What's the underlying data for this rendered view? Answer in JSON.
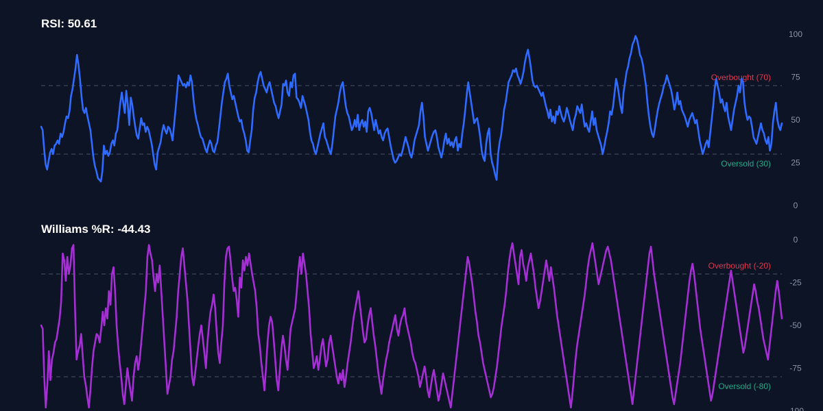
{
  "colors": {
    "background": "#0c1426",
    "rsi_line": "#2f6bff",
    "williams_line": "#a52fd4",
    "overbought": "#e0374f",
    "oversold": "#1faa8a",
    "guide": "#4a5468",
    "tick": "#8b93a7"
  },
  "chart_data": [
    {
      "type": "line",
      "title": "RSI: 50.61",
      "ylim": [
        0,
        100
      ],
      "yticks": [
        "100",
        "75",
        "50",
        "25",
        "0"
      ],
      "ytick_values": [
        100,
        75,
        50,
        25,
        0
      ],
      "grid": false,
      "levels": [
        {
          "value": 70,
          "label": "Overbought (70)",
          "kind": "overbought"
        },
        {
          "value": 30,
          "label": "Oversold (30)",
          "kind": "oversold"
        }
      ],
      "series": [
        {
          "values": [
            46,
            44,
            33,
            24,
            21,
            26,
            31,
            33,
            30,
            35,
            36,
            38,
            36,
            42,
            40,
            43,
            48,
            52,
            51,
            55,
            64,
            68,
            74,
            80,
            88,
            82,
            74,
            64,
            56,
            54,
            57,
            52,
            48,
            44,
            36,
            28,
            23,
            20,
            16,
            15,
            14,
            20,
            35,
            30,
            32,
            29,
            31,
            36,
            38,
            35,
            42,
            44,
            52,
            60,
            66,
            60,
            54,
            67,
            59,
            47,
            63,
            59,
            52,
            46,
            41,
            39,
            45,
            51,
            47,
            48,
            43,
            46,
            44,
            40,
            36,
            30,
            24,
            21,
            31,
            34,
            37,
            43,
            47,
            44,
            42,
            46,
            45,
            42,
            38,
            47,
            56,
            66,
            76,
            74,
            72,
            70,
            71,
            69,
            72,
            70,
            76,
            72,
            62,
            55,
            50,
            47,
            43,
            40,
            39,
            36,
            33,
            31,
            35,
            38,
            36,
            32,
            31,
            35,
            37,
            44,
            52,
            60,
            66,
            72,
            74,
            77,
            70,
            66,
            62,
            64,
            60,
            56,
            52,
            49,
            50,
            45,
            42,
            38,
            32,
            31,
            38,
            44,
            56,
            63,
            66,
            72,
            76,
            78,
            74,
            70,
            68,
            66,
            70,
            72,
            68,
            64,
            60,
            58,
            54,
            51,
            55,
            59,
            71,
            70,
            73,
            66,
            64,
            72,
            69,
            76,
            77,
            63,
            62,
            60,
            57,
            64,
            61,
            58,
            54,
            50,
            43,
            38,
            36,
            32,
            30,
            34,
            38,
            42,
            45,
            48,
            40,
            38,
            35,
            32,
            30,
            36,
            44,
            52,
            56,
            60,
            66,
            70,
            72,
            65,
            58,
            54,
            52,
            48,
            44,
            46,
            50,
            46,
            53,
            44,
            48,
            50,
            46,
            49,
            43,
            55,
            57,
            54,
            49,
            44,
            50,
            46,
            42,
            44,
            40,
            38,
            42,
            44,
            45,
            40,
            35,
            31,
            27,
            25,
            26,
            28,
            30,
            29,
            32,
            36,
            40,
            37,
            34,
            30,
            28,
            32,
            38,
            41,
            44,
            47,
            55,
            60,
            52,
            40,
            36,
            32,
            35,
            38,
            41,
            43,
            44,
            40,
            34,
            31,
            28,
            32,
            38,
            42,
            36,
            39,
            35,
            37,
            34,
            38,
            40,
            32,
            36,
            34,
            42,
            48,
            56,
            65,
            72,
            66,
            60,
            54,
            48,
            50,
            51,
            46,
            40,
            32,
            28,
            26,
            36,
            42,
            45,
            30,
            25,
            22,
            18,
            15,
            30,
            37,
            41,
            48,
            56,
            60,
            66,
            72,
            74,
            76,
            79,
            78,
            80,
            76,
            74,
            71,
            74,
            78,
            84,
            88,
            91,
            86,
            80,
            73,
            70,
            69,
            70,
            68,
            66,
            64,
            66,
            62,
            58,
            55,
            51,
            56,
            49,
            52,
            48,
            55,
            53,
            58,
            54,
            51,
            49,
            52,
            57,
            54,
            50,
            47,
            44,
            50,
            53,
            58,
            56,
            54,
            59,
            52,
            46,
            48,
            45,
            43,
            49,
            55,
            47,
            51,
            44,
            41,
            38,
            35,
            30,
            34,
            39,
            43,
            48,
            55,
            53,
            58,
            66,
            74,
            70,
            64,
            58,
            54,
            66,
            72,
            78,
            81,
            86,
            89,
            94,
            96,
            99,
            97,
            93,
            88,
            86,
            82,
            76,
            70,
            60,
            52,
            46,
            42,
            40,
            45,
            51,
            56,
            60,
            63,
            66,
            70,
            72,
            76,
            73,
            70,
            67,
            62,
            56,
            60,
            66,
            59,
            61,
            56,
            54,
            52,
            49,
            46,
            50,
            52,
            54,
            51,
            48,
            50,
            44,
            38,
            34,
            30,
            33,
            36,
            38,
            34,
            42,
            50,
            58,
            68,
            74,
            70,
            66,
            60,
            62,
            58,
            55,
            60,
            52,
            48,
            44,
            50,
            56,
            60,
            64,
            70,
            66,
            74,
            72,
            60,
            54,
            50,
            52,
            51,
            46,
            40,
            38,
            36,
            40,
            44,
            48,
            44,
            42,
            38,
            36,
            40,
            32,
            36,
            48,
            55,
            60,
            50,
            46,
            44,
            48
          ]
        }
      ]
    },
    {
      "type": "line",
      "title": "Williams %R: -44.43",
      "ylim": [
        -100,
        0
      ],
      "yticks": [
        "0",
        "-25",
        "-50",
        "-75",
        "-100"
      ],
      "ytick_values": [
        0,
        -25,
        -50,
        -75,
        -100
      ],
      "grid": false,
      "levels": [
        {
          "value": -20,
          "label": "Overbought (-20)",
          "kind": "overbought"
        },
        {
          "value": -80,
          "label": "Oversold (-80)",
          "kind": "oversold"
        }
      ],
      "series": [
        {
          "values": [
            -50,
            -52,
            -80,
            -98,
            -85,
            -65,
            -82,
            -70,
            -66,
            -60,
            -58,
            -52,
            -46,
            -36,
            -8,
            -12,
            -24,
            -10,
            -20,
            -15,
            -5,
            -3,
            -40,
            -70,
            -65,
            -62,
            -55,
            -68,
            -80,
            -85,
            -92,
            -98,
            -88,
            -75,
            -65,
            -60,
            -55,
            -56,
            -60,
            -52,
            -42,
            -50,
            -40,
            -46,
            -30,
            -38,
            -20,
            -16,
            -30,
            -50,
            -62,
            -72,
            -80,
            -90,
            -96,
            -85,
            -75,
            -82,
            -88,
            -94,
            -80,
            -72,
            -68,
            -76,
            -70,
            -60,
            -50,
            -40,
            -30,
            -10,
            -3,
            -8,
            -12,
            -22,
            -30,
            -20,
            -25,
            -15,
            -30,
            -45,
            -60,
            -75,
            -90,
            -85,
            -80,
            -70,
            -65,
            -55,
            -45,
            -30,
            -20,
            -10,
            -5,
            -15,
            -25,
            -35,
            -50,
            -65,
            -80,
            -85,
            -78,
            -70,
            -62,
            -55,
            -50,
            -58,
            -66,
            -75,
            -60,
            -50,
            -42,
            -38,
            -32,
            -40,
            -54,
            -66,
            -72,
            -60,
            -50,
            -25,
            -10,
            -5,
            -4,
            -12,
            -22,
            -30,
            -28,
            -35,
            -45,
            -22,
            -28,
            -12,
            -18,
            -10,
            -15,
            -8,
            -14,
            -20,
            -25,
            -30,
            -40,
            -55,
            -62,
            -72,
            -80,
            -88,
            -75,
            -60,
            -50,
            -45,
            -48,
            -58,
            -70,
            -82,
            -88,
            -76,
            -64,
            -56,
            -62,
            -70,
            -76,
            -64,
            -52,
            -48,
            -44,
            -40,
            -30,
            -18,
            -10,
            -20,
            -8,
            -14,
            -20,
            -30,
            -40,
            -55,
            -65,
            -75,
            -72,
            -68,
            -76,
            -70,
            -62,
            -58,
            -66,
            -74,
            -70,
            -60,
            -56,
            -62,
            -68,
            -74,
            -80,
            -84,
            -78,
            -82,
            -76,
            -86,
            -80,
            -72,
            -66,
            -60,
            -52,
            -45,
            -40,
            -35,
            -30,
            -38,
            -46,
            -54,
            -60,
            -58,
            -50,
            -44,
            -40,
            -48,
            -56,
            -62,
            -70,
            -78,
            -84,
            -90,
            -82,
            -76,
            -70,
            -66,
            -60,
            -56,
            -52,
            -48,
            -44,
            -52,
            -56,
            -50,
            -46,
            -44,
            -40,
            -48,
            -52,
            -56,
            -60,
            -66,
            -70,
            -72,
            -76,
            -80,
            -86,
            -82,
            -78,
            -74,
            -80,
            -88,
            -92,
            -86,
            -80,
            -76,
            -82,
            -88,
            -94,
            -90,
            -84,
            -78,
            -82,
            -86,
            -90,
            -94,
            -98,
            -90,
            -82,
            -74,
            -66,
            -58,
            -50,
            -42,
            -34,
            -26,
            -18,
            -10,
            -14,
            -20,
            -26,
            -34,
            -42,
            -48,
            -56,
            -60,
            -66,
            -72,
            -76,
            -80,
            -84,
            -88,
            -92,
            -90,
            -86,
            -80,
            -74,
            -66,
            -58,
            -50,
            -44,
            -38,
            -30,
            -20,
            -12,
            -6,
            -2,
            -8,
            -14,
            -20,
            -26,
            -10,
            -6,
            -14,
            -18,
            -24,
            -16,
            -12,
            -8,
            -14,
            -20,
            -28,
            -34,
            -40,
            -36,
            -30,
            -24,
            -18,
            -12,
            -18,
            -24,
            -16,
            -22,
            -28,
            -36,
            -44,
            -50,
            -56,
            -62,
            -68,
            -74,
            -80,
            -86,
            -92,
            -98,
            -90,
            -80,
            -70,
            -62,
            -56,
            -50,
            -44,
            -38,
            -32,
            -24,
            -16,
            -10,
            -6,
            -2,
            -8,
            -14,
            -20,
            -26,
            -22,
            -18,
            -14,
            -10,
            -6,
            -4,
            -8,
            -12,
            -18,
            -24,
            -30,
            -36,
            -42,
            -48,
            -54,
            -60,
            -66,
            -72,
            -78,
            -84,
            -90,
            -96,
            -88,
            -80,
            -72,
            -64,
            -56,
            -48,
            -40,
            -32,
            -24,
            -16,
            -8,
            -4,
            -12,
            -20,
            -26,
            -32,
            -38,
            -44,
            -50,
            -56,
            -62,
            -68,
            -74,
            -80,
            -86,
            -92,
            -96,
            -90,
            -84,
            -78,
            -72,
            -64,
            -56,
            -48,
            -40,
            -32,
            -24,
            -18,
            -14,
            -20,
            -28,
            -36,
            -44,
            -52,
            -58,
            -64,
            -70,
            -76,
            -82,
            -88,
            -94,
            -90,
            -84,
            -78,
            -72,
            -66,
            -60,
            -54,
            -48,
            -42,
            -36,
            -30,
            -24,
            -18,
            -24,
            -30,
            -36,
            -42,
            -48,
            -54,
            -60,
            -66,
            -62,
            -56,
            -50,
            -44,
            -38,
            -32,
            -26,
            -30,
            -36,
            -40,
            -46,
            -52,
            -58,
            -62,
            -66,
            -70,
            -62,
            -54,
            -46,
            -38,
            -30,
            -24,
            -30,
            -38,
            -46
          ]
        }
      ]
    }
  ]
}
